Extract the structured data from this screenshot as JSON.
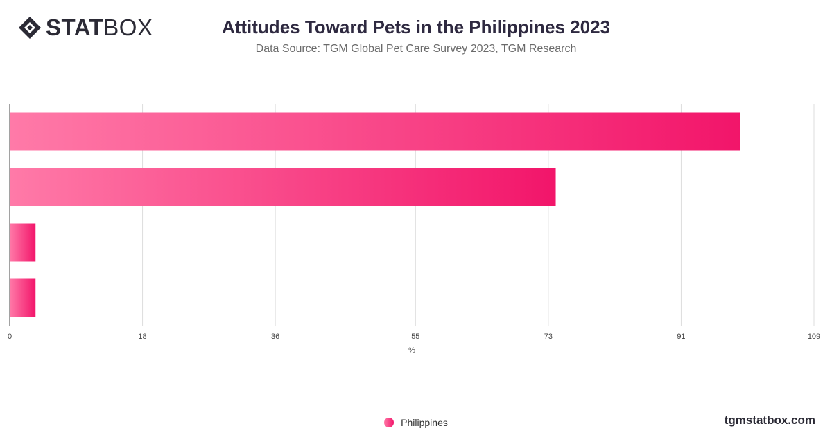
{
  "brand": {
    "logo_bold": "STAT",
    "logo_light": "BOX",
    "site": "tgmstatbox.com"
  },
  "chart_data": {
    "type": "bar",
    "orientation": "horizontal",
    "title": "Attitudes Toward Pets in the Philippines 2023",
    "subtitle": "Data Source: TGM Global Pet Care Survey 2023, TGM Research",
    "xlabel": "%",
    "ylabel": "",
    "xlim": [
      0,
      109
    ],
    "xticks": [
      0,
      18,
      36,
      55,
      73,
      91,
      109
    ],
    "categories": [
      "",
      "",
      "",
      ""
    ],
    "series": [
      {
        "name": "Philippines",
        "values": [
          99,
          74,
          3.5,
          3.5
        ]
      }
    ],
    "grid": true,
    "legend_position": "bottom",
    "colors": {
      "bar_start": "#ff7aa8",
      "bar_end": "#f2156a"
    }
  }
}
